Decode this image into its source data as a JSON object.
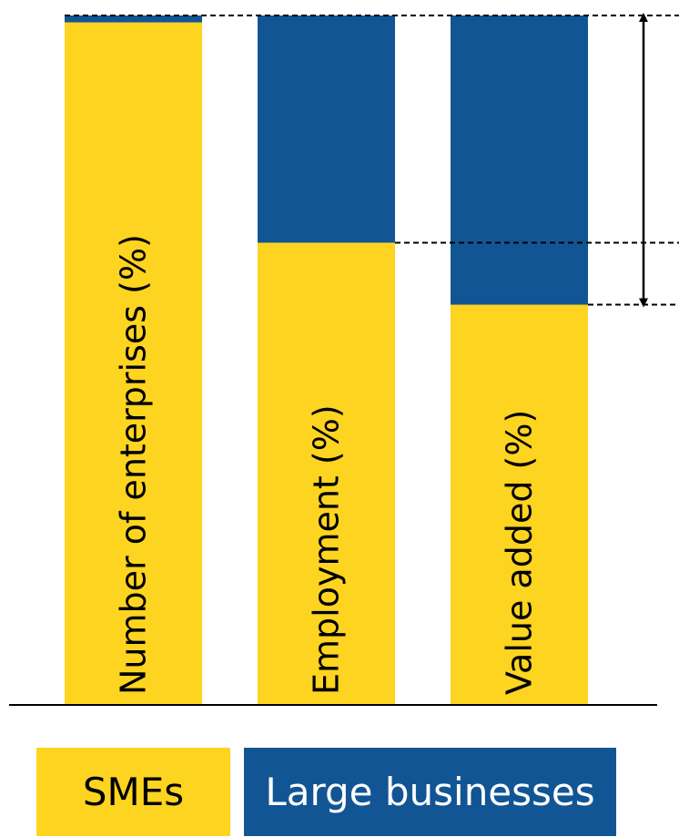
{
  "chart_data": {
    "type": "bar",
    "stacked": true,
    "categories": [
      "Number of enterprises (%)",
      "Employment (%)",
      "Value added (%)"
    ],
    "series": [
      {
        "name": "SMEs",
        "values": [
          99,
          67,
          58
        ],
        "color": "#FDD41F"
      },
      {
        "name": "Large businesses",
        "values": [
          1,
          33,
          42
        ],
        "color": "#125594"
      }
    ],
    "ylim": [
      0,
      100
    ],
    "legend_position": "bottom",
    "grid": false,
    "annotations": {
      "dashed_guides": true,
      "arrows": "between total and category levels"
    }
  },
  "legend": {
    "smes_label": "SMEs",
    "smes_color": "#FDD41F",
    "large_label": "Large businesses",
    "large_color": "#125594"
  }
}
